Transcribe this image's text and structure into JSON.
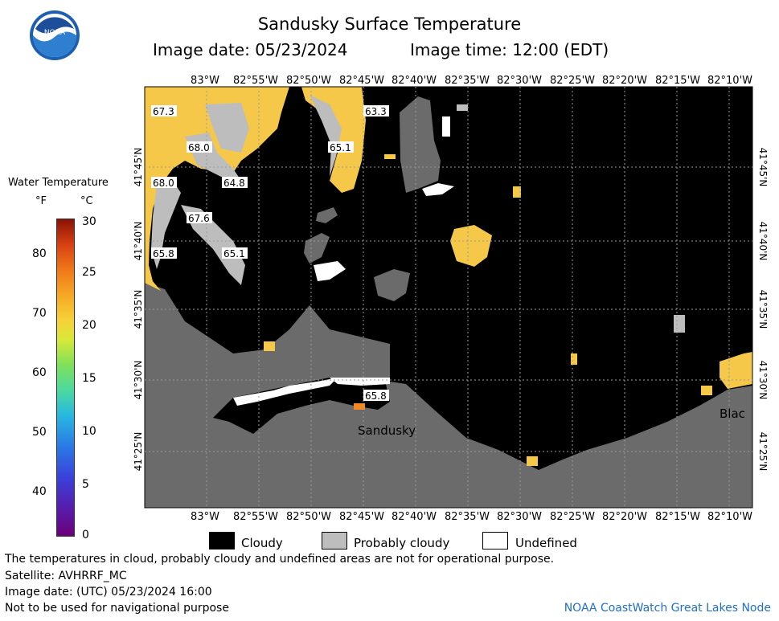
{
  "title": "Sandusky Surface Temperature",
  "image_date": "Image date: 05/23/2024",
  "image_time": "Image time: 12:00 (EDT)",
  "logo_text": "NOAA",
  "legend": {
    "title": "Water Temperature",
    "unit_f": "°F",
    "unit_c": "°C",
    "f_ticks": [
      "80",
      "70",
      "60",
      "50",
      "40"
    ],
    "c_ticks": [
      "30",
      "25",
      "20",
      "15",
      "10",
      "5",
      "0"
    ]
  },
  "map": {
    "lon_labels": [
      "83°W",
      "82°55'W",
      "82°50'W",
      "82°45'W",
      "82°40'W",
      "82°35'W",
      "82°30'W",
      "82°25'W",
      "82°20'W",
      "82°15'W",
      "82°10'W"
    ],
    "lat_labels": [
      "41°45'N",
      "41°40'N",
      "41°35'N",
      "41°30'N",
      "41°25'N"
    ],
    "temp_labels": [
      "67.3",
      "68.0",
      "65.1",
      "63.3",
      "64.8",
      "68.0",
      "67.6",
      "65.8",
      "65.1",
      "65.8"
    ],
    "place_labels": [
      "Sandusky",
      "Blac"
    ],
    "colors": {
      "cloudy": "#000000",
      "probably_cloudy": "#bdbdbd",
      "land": "#6b6b6b",
      "warm_water": "#f6c84a",
      "undefined": "#ffffff"
    }
  },
  "key": {
    "cloudy": "Cloudy",
    "probably_cloudy": "Probably cloudy",
    "undefined": "Undefined"
  },
  "notes": [
    "The temperatures in cloud, probably cloudy and undefined areas are not for operational purpose.",
    "Satellite: AVHRRF_MC",
    "Image date: (UTC) 05/23/2024  16:00",
    "Not to be used for navigational purpose"
  ],
  "credit": "NOAA CoastWatch Great Lakes Node"
}
